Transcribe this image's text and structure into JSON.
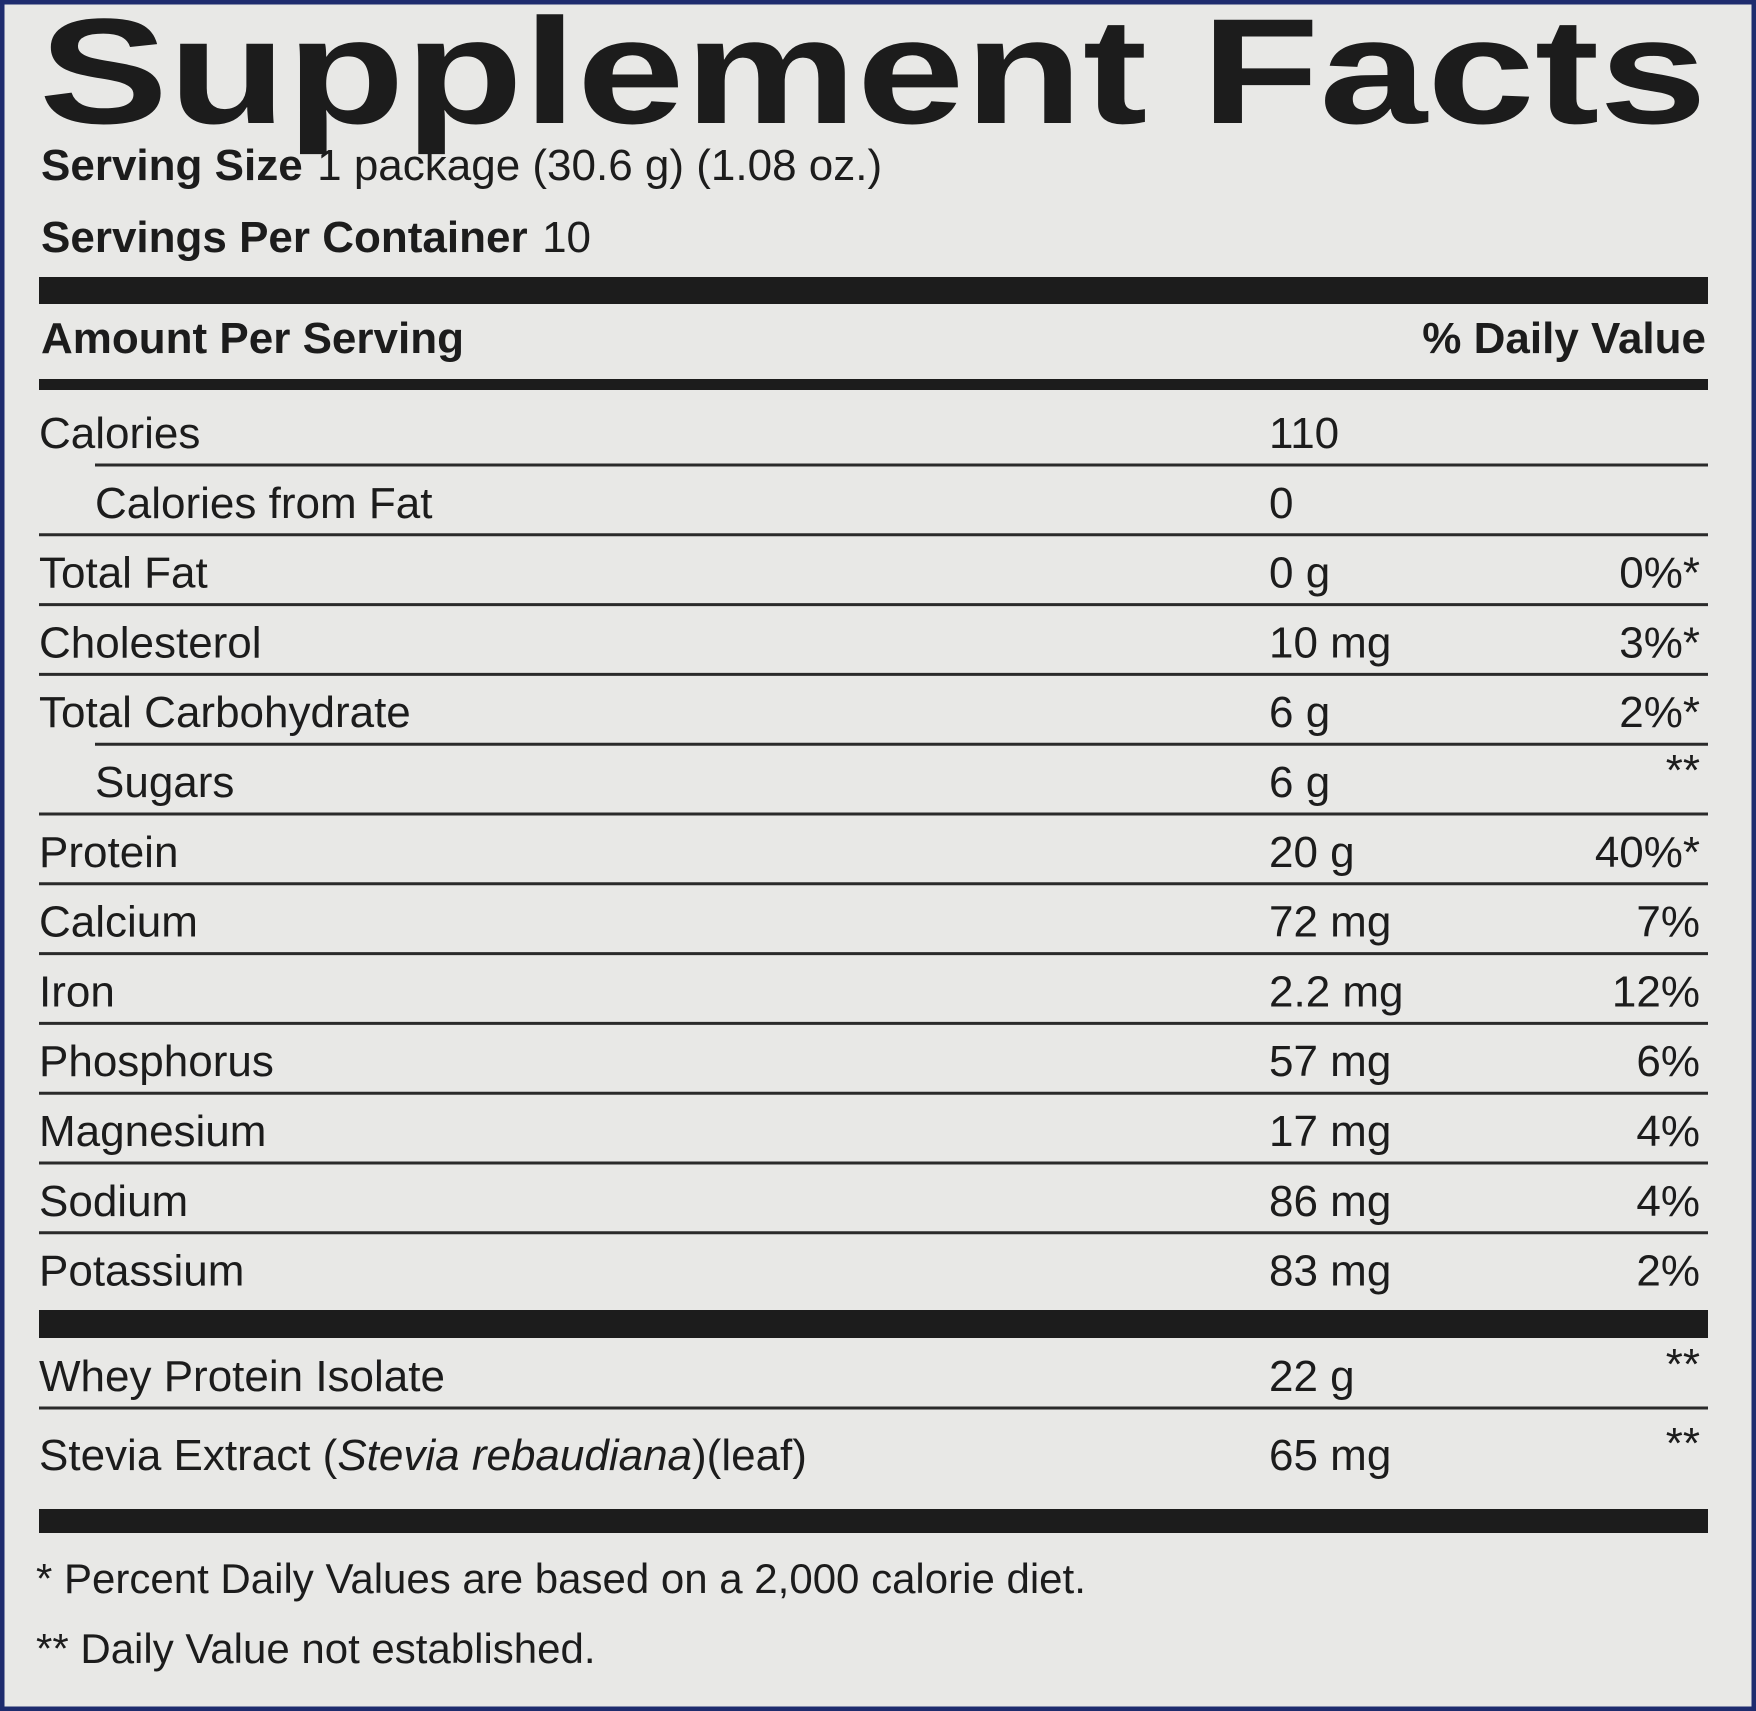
{
  "title": "Supplement Facts",
  "serving_size": {
    "label": "Serving Size",
    "value": "1 package (30.6 g) (1.08 oz.)"
  },
  "servings_per_container": {
    "label": "Servings Per Container",
    "value": "10"
  },
  "table_header": {
    "amount": "Amount Per Serving",
    "daily_value": "% Daily Value"
  },
  "rows": [
    {
      "name": "Calories",
      "amount": "110",
      "daily_value": null,
      "sub": [
        {
          "name": "Calories from Fat",
          "amount": "0",
          "daily_value": null
        }
      ]
    },
    {
      "name": "Total Fat",
      "amount": "0 g",
      "daily_value": "0%*"
    },
    {
      "name": "Cholesterol",
      "amount": "10 mg",
      "daily_value": "3%*"
    },
    {
      "name": "Total Carbohydrate",
      "amount": "6 g",
      "daily_value": "2%*",
      "sub": [
        {
          "name": "Sugars",
          "amount": "6 g",
          "daily_value": "**"
        }
      ]
    },
    {
      "name": "Protein",
      "amount": "20 g",
      "daily_value": "40%*"
    },
    {
      "name": "Calcium",
      "amount": "72 mg",
      "daily_value": "7%"
    },
    {
      "name": "Iron",
      "amount": "2.2 mg",
      "daily_value": "12%"
    },
    {
      "name": "Phosphorus",
      "amount": "57 mg",
      "daily_value": "6%"
    },
    {
      "name": "Magnesium",
      "amount": "17 mg",
      "daily_value": "4%"
    },
    {
      "name": "Sodium",
      "amount": "86 mg",
      "daily_value": "4%"
    },
    {
      "name": "Potassium",
      "amount": "83 mg",
      "daily_value": "2%"
    }
  ],
  "ingredients": [
    {
      "name": "Whey Protein Isolate",
      "amount": "22 g",
      "daily_value": "**"
    },
    {
      "name": "Stevia Extract (",
      "name_italic": "Stevia rebaudiana",
      "name_after": ")(leaf)",
      "amount": "65 mg",
      "daily_value": "**"
    }
  ],
  "footnotes": [
    "* Percent Daily Values are based on a 2,000 calorie diet.",
    "** Daily Value not established."
  ]
}
